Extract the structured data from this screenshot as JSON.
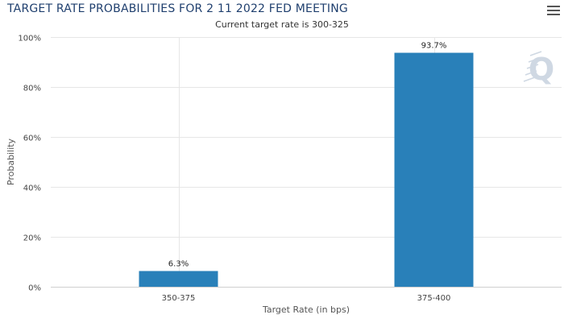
{
  "chart_data": {
    "type": "bar",
    "title": "TARGET RATE PROBABILITIES FOR 2 11 2022 FED MEETING",
    "subtitle": "Current target rate is 300-325",
    "xlabel": "Target Rate (in bps)",
    "ylabel": "Probability",
    "categories": [
      "350-375",
      "375-400"
    ],
    "values": [
      6.3,
      93.7
    ],
    "data_labels": [
      "6.3%",
      "93.7%"
    ],
    "ylim": [
      0,
      100
    ],
    "yticks": [
      0,
      20,
      40,
      60,
      80,
      100
    ],
    "ytick_labels": [
      "0%",
      "20%",
      "40%",
      "60%",
      "80%",
      "100%"
    ],
    "grid": true,
    "legend": "none",
    "bar_color": "#2980b9",
    "watermark_letter": "Q"
  },
  "toolbar": {
    "menu_icon": "hamburger-menu-icon"
  }
}
